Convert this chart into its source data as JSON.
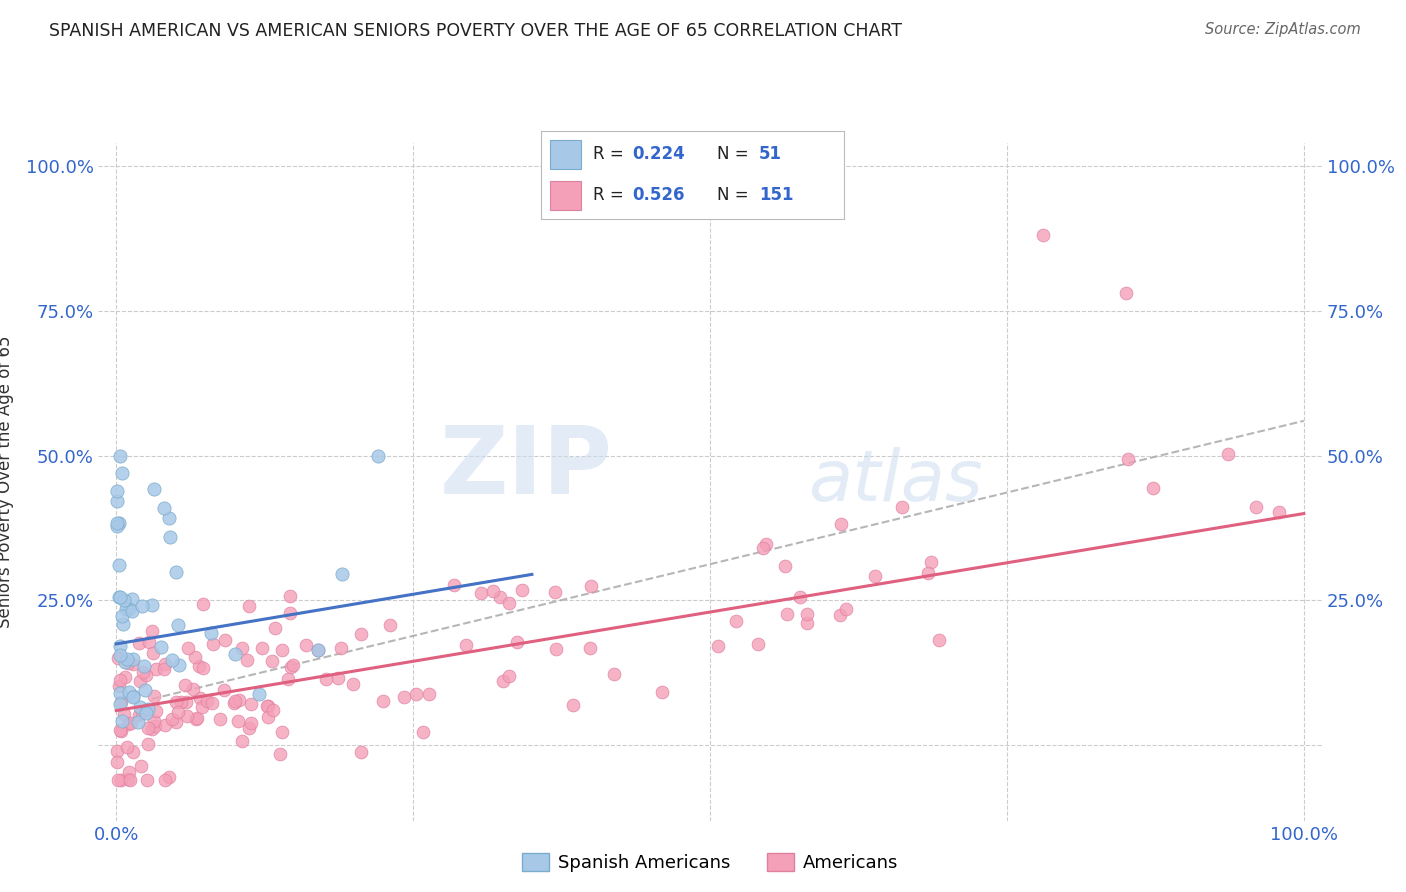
{
  "title": "SPANISH AMERICAN VS AMERICAN SENIORS POVERTY OVER THE AGE OF 65 CORRELATION CHART",
  "source": "Source: ZipAtlas.com",
  "ylabel": "Seniors Poverty Over the Age of 65",
  "legend_label1": "Spanish Americans",
  "legend_label2": "Americans",
  "color_blue": "#a8c8e8",
  "color_pink": "#f4a0b8",
  "color_blue_line": "#4472c4",
  "color_pink_line": "#e06080",
  "color_dashed": "#aaaaaa",
  "background_color": "#ffffff",
  "grid_color": "#cccccc",
  "blue_seed": 42,
  "pink_seed": 99,
  "n_blue": 51,
  "n_pink": 151
}
